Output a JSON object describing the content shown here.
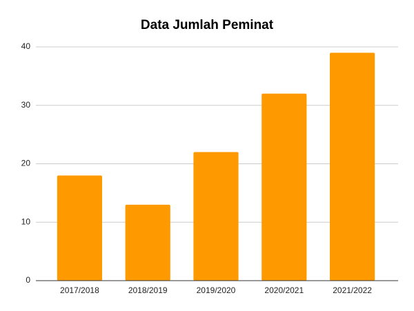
{
  "chart_data": {
    "type": "bar",
    "title": "Data Jumlah Peminat",
    "categories": [
      "2017/2018",
      "2018/2019",
      "2019/2020",
      "2020/2021",
      "2021/2022"
    ],
    "values": [
      18,
      13,
      22,
      32,
      39
    ],
    "color": "#ff9900",
    "ylim": [
      0,
      40
    ],
    "yticks": [
      0,
      10,
      20,
      30,
      40
    ],
    "grid": true
  }
}
